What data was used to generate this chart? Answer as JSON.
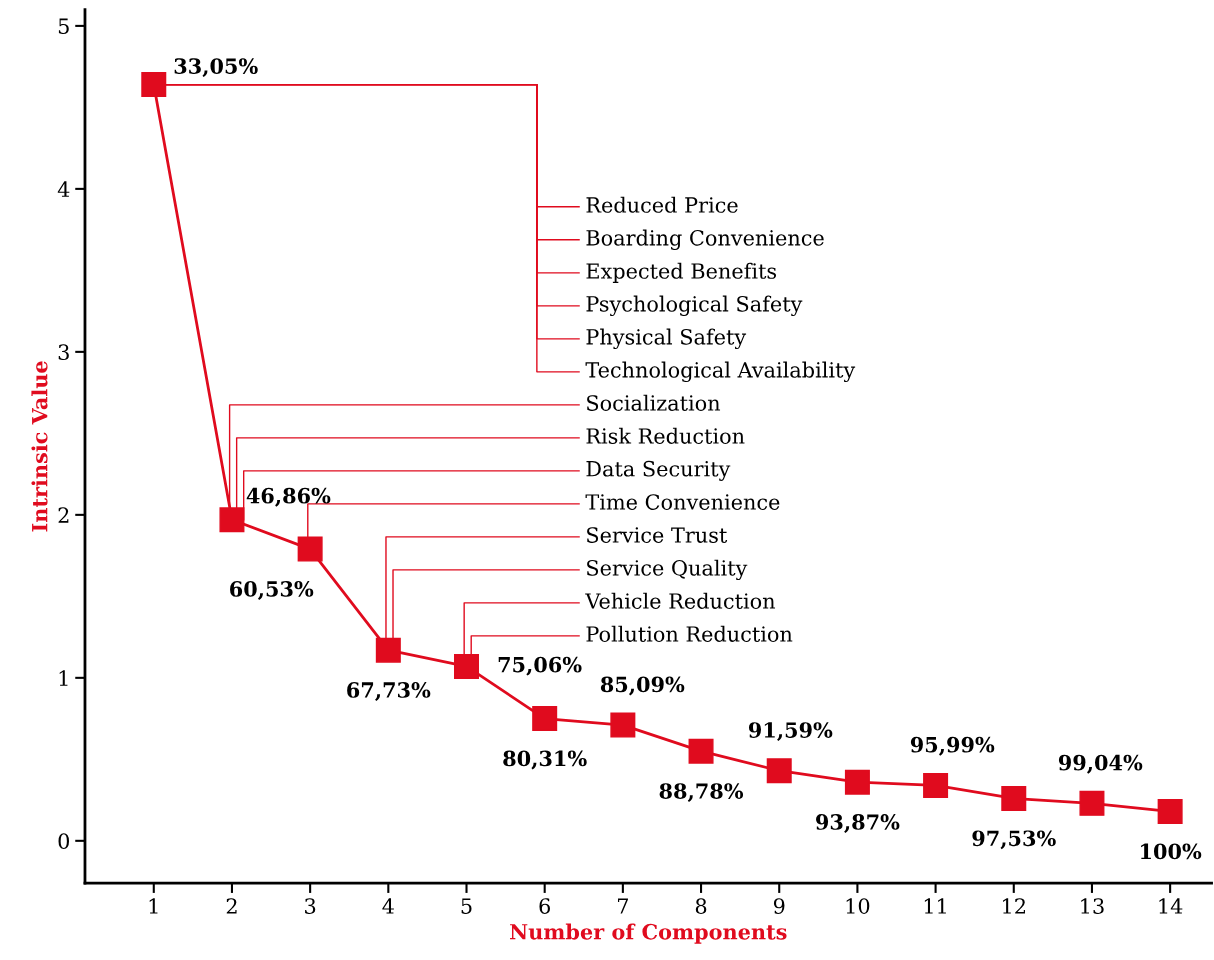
{
  "chart_data": {
    "type": "line",
    "xlabel": "Number of Components",
    "ylabel": "Intrinsic Value",
    "x": [
      1,
      2,
      3,
      4,
      5,
      6,
      7,
      8,
      9,
      10,
      11,
      12,
      13,
      14
    ],
    "series": [
      {
        "color": "#e00b1e",
        "values": [
          4.64,
          1.97,
          1.79,
          1.17,
          1.07,
          0.75,
          0.71,
          0.55,
          0.43,
          0.36,
          0.34,
          0.26,
          0.23,
          0.18
        ]
      }
    ],
    "marker": "square",
    "line_style": "solid",
    "grid": false,
    "legend": false,
    "xlim": [
      0.12,
      14.53
    ],
    "ylim": [
      -0.26,
      5.1
    ],
    "xticks": [
      1,
      2,
      3,
      4,
      5,
      6,
      7,
      8,
      9,
      10,
      11,
      12,
      13,
      14
    ],
    "yticks": [
      0,
      1,
      2,
      3,
      4,
      5
    ],
    "annotations": [
      {
        "text": "33,05%",
        "x": 1,
        "y": 4.64
      },
      {
        "text": "46,86%",
        "x": 2,
        "y": 1.97
      },
      {
        "text": "60,53%",
        "x": 3,
        "y": 1.79
      },
      {
        "text": "67,73%",
        "x": 4,
        "y": 1.17
      },
      {
        "text": "75,06%",
        "x": 5,
        "y": 1.07
      },
      {
        "text": "80,31%",
        "x": 6,
        "y": 0.75
      },
      {
        "text": "85,09%",
        "x": 7,
        "y": 0.71
      },
      {
        "text": "88,78%",
        "x": 8,
        "y": 0.55
      },
      {
        "text": "91,59%",
        "x": 9,
        "y": 0.43
      },
      {
        "text": "93,87%",
        "x": 10,
        "y": 0.36
      },
      {
        "text": "95,99%",
        "x": 11,
        "y": 0.34
      },
      {
        "text": "97,53%",
        "x": 12,
        "y": 0.26
      },
      {
        "text": "99,04%",
        "x": 13,
        "y": 0.23
      },
      {
        "text": "100%",
        "x": 14,
        "y": 0.18
      },
      {
        "text": "Reduced Price",
        "x": 1,
        "y": 4.64
      },
      {
        "text": "Boarding Convenience",
        "x": 1,
        "y": 4.64
      },
      {
        "text": "Expected Benefits",
        "x": 1,
        "y": 4.64
      },
      {
        "text": "Psychological Safety",
        "x": 1,
        "y": 4.64
      },
      {
        "text": "Physical Safety",
        "x": 1,
        "y": 4.64
      },
      {
        "text": "Technological Availability",
        "x": 1,
        "y": 4.64
      },
      {
        "text": "Socialization",
        "x": 2,
        "y": 1.97
      },
      {
        "text": "Risk Reduction",
        "x": 2,
        "y": 1.97
      },
      {
        "text": "Data Security",
        "x": 2,
        "y": 1.97
      },
      {
        "text": "Time Convenience",
        "x": 3,
        "y": 1.79
      },
      {
        "text": "Service Trust",
        "x": 4,
        "y": 1.17
      },
      {
        "text": "Service Quality",
        "x": 4,
        "y": 1.17
      },
      {
        "text": "Vehicle Reduction",
        "x": 5,
        "y": 1.07
      },
      {
        "text": "Pollution Reduction",
        "x": 5,
        "y": 1.07
      }
    ]
  }
}
